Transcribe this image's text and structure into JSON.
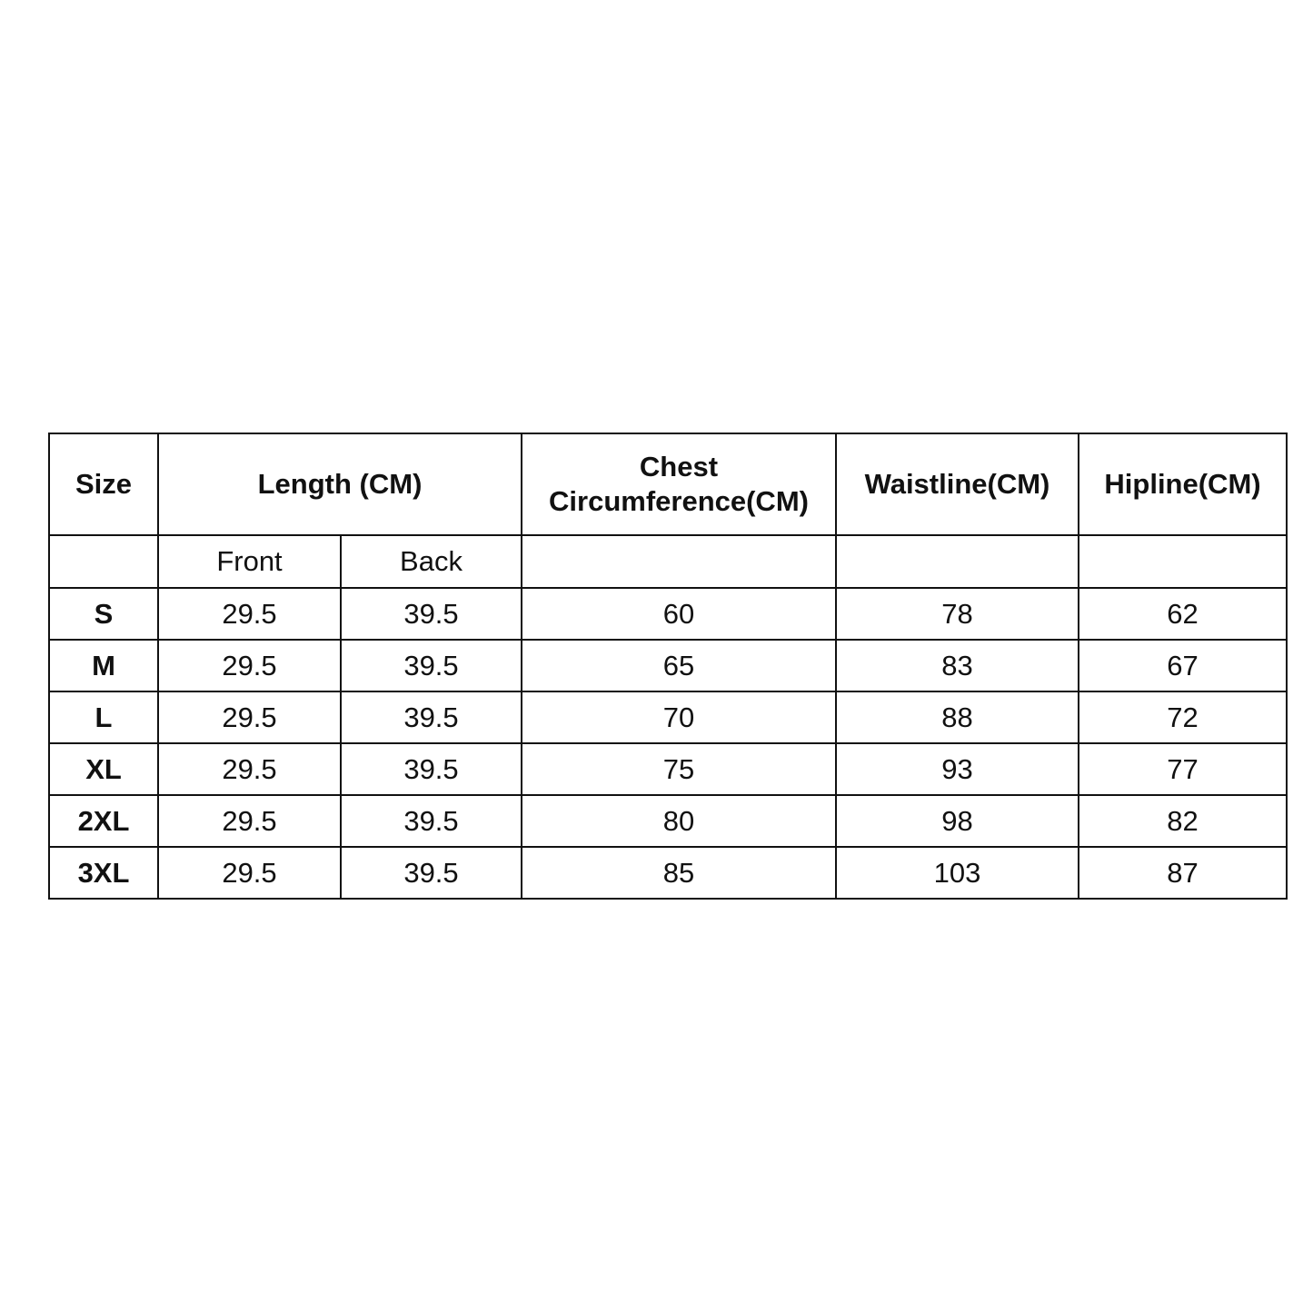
{
  "headers": {
    "size": "Size",
    "length": "Length (CM)",
    "chest_line1": "Chest",
    "chest_line2": "Circumference(CM)",
    "waist": "Waistline(CM)",
    "hip": "Hipline(CM)"
  },
  "subheaders": {
    "front": "Front",
    "back": "Back"
  },
  "rows": [
    {
      "size": "S",
      "front": "29.5",
      "back": "39.5",
      "chest": "60",
      "waist": "78",
      "hip": "62"
    },
    {
      "size": "M",
      "front": "29.5",
      "back": "39.5",
      "chest": "65",
      "waist": "83",
      "hip": "67"
    },
    {
      "size": "L",
      "front": "29.5",
      "back": "39.5",
      "chest": "70",
      "waist": "88",
      "hip": "72"
    },
    {
      "size": "XL",
      "front": "29.5",
      "back": "39.5",
      "chest": "75",
      "waist": "93",
      "hip": "77"
    },
    {
      "size": "2XL",
      "front": "29.5",
      "back": "39.5",
      "chest": "80",
      "waist": "98",
      "hip": "82"
    },
    {
      "size": "3XL",
      "front": "29.5",
      "back": "39.5",
      "chest": "85",
      "waist": "103",
      "hip": "87"
    }
  ]
}
